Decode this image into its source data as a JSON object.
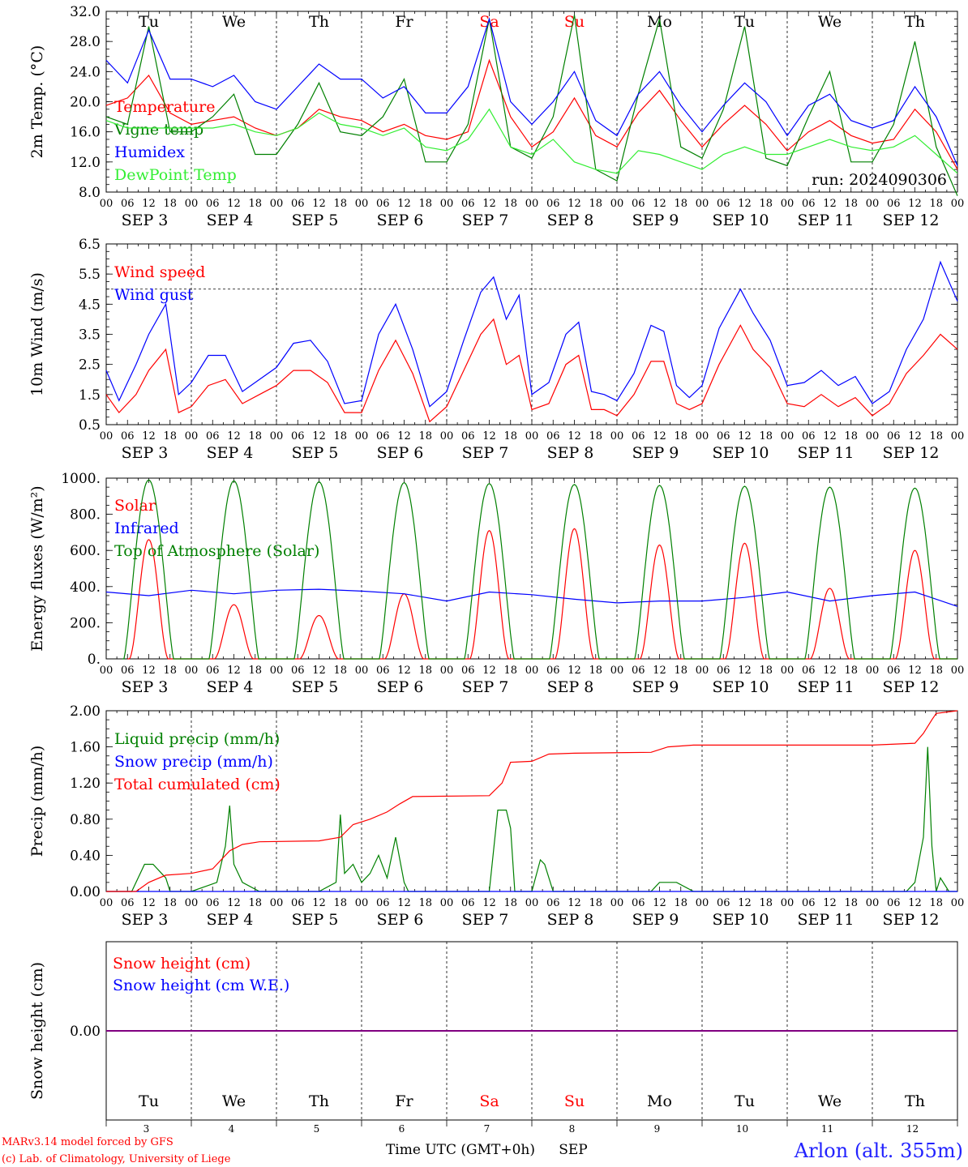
{
  "run_label": "run: 2024090306",
  "footer": {
    "model_line": "MARv3.14 model forced by GFS",
    "lab_line": "(c) Lab. of Climatology, University of Liege",
    "station": "Arlon (alt. 355m)",
    "xaxis_title": "Time UTC (GMT+0h)",
    "month": "SEP"
  },
  "colors": {
    "red": "#ff0000",
    "green": "#008000",
    "blue": "#0000ff",
    "light_green": "#33ee33",
    "purple": "#800080",
    "weekend": "#ff0000"
  },
  "days": [
    {
      "dow": "Tu",
      "date": "SEP  3",
      "num": "3",
      "weekend": false
    },
    {
      "dow": "We",
      "date": "SEP  4",
      "num": "4",
      "weekend": false
    },
    {
      "dow": "Th",
      "date": "SEP  5",
      "num": "5",
      "weekend": false
    },
    {
      "dow": "Fr",
      "date": "SEP  6",
      "num": "6",
      "weekend": false
    },
    {
      "dow": "Sa",
      "date": "SEP  7",
      "num": "7",
      "weekend": true
    },
    {
      "dow": "Su",
      "date": "SEP  8",
      "num": "8",
      "weekend": true
    },
    {
      "dow": "Mo",
      "date": "SEP  9",
      "num": "9",
      "weekend": false
    },
    {
      "dow": "Tu",
      "date": "SEP 10",
      "num": "10",
      "weekend": false
    },
    {
      "dow": "We",
      "date": "SEP 11",
      "num": "11",
      "weekend": false
    },
    {
      "dow": "Th",
      "date": "SEP 12",
      "num": "12",
      "weekend": false
    }
  ],
  "hour_labels": [
    "00",
    "06",
    "12",
    "18"
  ],
  "chart_data": [
    {
      "type": "line",
      "id": "temp",
      "ylabel": "2m Temp. (°C)",
      "ylim": [
        8.0,
        32.0
      ],
      "yticks": [
        "8.0",
        "12.0",
        "16.0",
        "20.0",
        "24.0",
        "28.0",
        "32.0"
      ],
      "ytick_values": [
        8,
        12,
        16,
        20,
        24,
        28,
        32
      ],
      "x_unit": "days since SEP 3 00 UTC",
      "show_run": true,
      "series": [
        {
          "name": "Temperature",
          "color": "#ff0000",
          "x": [
            0,
            0.25,
            0.5,
            0.75,
            1,
            1.25,
            1.5,
            1.75,
            2,
            2.25,
            2.5,
            2.75,
            3,
            3.25,
            3.5,
            3.75,
            4,
            4.25,
            4.5,
            4.75,
            5,
            5.25,
            5.5,
            5.75,
            6,
            6.25,
            6.5,
            6.75,
            7,
            7.25,
            7.5,
            7.75,
            8,
            8.25,
            8.5,
            8.75,
            9,
            9.25,
            9.5,
            9.75,
            10
          ],
          "values": [
            19.5,
            20.5,
            23.5,
            18.5,
            17,
            17.5,
            18,
            16.5,
            15.5,
            16.5,
            19,
            18,
            17.5,
            16,
            17,
            15.5,
            15,
            16,
            25.5,
            18,
            14,
            16,
            20.5,
            15.5,
            14,
            18.5,
            21.5,
            17.5,
            14,
            17,
            19.5,
            17,
            13.5,
            16,
            17.5,
            15.5,
            14.5,
            15,
            19,
            16,
            11
          ]
        },
        {
          "name": "Vigne temp",
          "color": "#008000",
          "x": [
            0,
            0.25,
            0.5,
            0.75,
            1,
            1.25,
            1.5,
            1.75,
            2,
            2.25,
            2.5,
            2.75,
            3,
            3.25,
            3.5,
            3.75,
            4,
            4.25,
            4.5,
            4.75,
            5,
            5.25,
            5.5,
            5.75,
            6,
            6.25,
            6.5,
            6.75,
            7,
            7.25,
            7.5,
            7.75,
            8,
            8.25,
            8.5,
            8.75,
            9,
            9.25,
            9.5,
            9.75,
            10
          ],
          "values": [
            18,
            17,
            30,
            16,
            16,
            18,
            21,
            13,
            13,
            17,
            22.5,
            16,
            15.5,
            18,
            23,
            12,
            12,
            17,
            31,
            14,
            12.5,
            18,
            31.5,
            11,
            9.5,
            21,
            31,
            14,
            12.5,
            19,
            30,
            12.5,
            11.5,
            18,
            24,
            12,
            12,
            17,
            28,
            14,
            7.5
          ]
        },
        {
          "name": "Humidex",
          "color": "#0000ff",
          "x": [
            0,
            0.25,
            0.5,
            0.75,
            1,
            1.25,
            1.5,
            1.75,
            2,
            2.25,
            2.5,
            2.75,
            3,
            3.25,
            3.5,
            3.75,
            4,
            4.25,
            4.5,
            4.75,
            5,
            5.25,
            5.5,
            5.75,
            6,
            6.25,
            6.5,
            6.75,
            7,
            7.25,
            7.5,
            7.75,
            8,
            8.25,
            8.5,
            8.75,
            9,
            9.25,
            9.5,
            9.75,
            10
          ],
          "values": [
            25.5,
            22.5,
            29.5,
            23,
            23,
            22,
            23.5,
            20,
            19,
            22,
            25,
            23,
            23,
            20.5,
            22,
            18.5,
            18.5,
            22,
            31,
            20,
            17,
            20,
            24,
            17.5,
            15.5,
            21,
            24,
            19.5,
            16,
            19.5,
            22.5,
            20,
            15.5,
            19.5,
            21,
            17.5,
            16.5,
            17.5,
            22,
            18,
            11.5
          ]
        },
        {
          "name": "DewPoint Temp",
          "color": "#33ee33",
          "x": [
            0,
            0.25,
            0.5,
            0.75,
            1,
            1.25,
            1.5,
            1.75,
            2,
            2.25,
            2.5,
            2.75,
            3,
            3.25,
            3.5,
            3.75,
            4,
            4.25,
            4.5,
            4.75,
            5,
            5.25,
            5.5,
            5.75,
            6,
            6.25,
            6.5,
            6.75,
            7,
            7.25,
            7.5,
            7.75,
            8,
            8.25,
            8.5,
            8.75,
            9,
            9.25,
            9.5,
            9.75,
            10
          ],
          "values": [
            17.5,
            16.5,
            16.5,
            16.5,
            16.5,
            16.5,
            17,
            16,
            15.5,
            16.5,
            18.5,
            17,
            16.5,
            15.5,
            16.5,
            14,
            13.5,
            15,
            19,
            14,
            13,
            15,
            12,
            11,
            10.5,
            13.5,
            13,
            12,
            11,
            13,
            14,
            13,
            13,
            14,
            15,
            14,
            13.5,
            14,
            15.5,
            13,
            10.5
          ]
        }
      ]
    },
    {
      "type": "line",
      "id": "wind",
      "ylabel": "10m Wind (m/s)",
      "ylim": [
        0.5,
        6.5
      ],
      "yticks": [
        "0.5",
        "1.5",
        "2.5",
        "3.5",
        "4.5",
        "5.5",
        "6.5"
      ],
      "ytick_values": [
        0.5,
        1.5,
        2.5,
        3.5,
        4.5,
        5.5,
        6.5
      ],
      "hline": 5.0,
      "x_unit": "days since SEP 3 00 UTC",
      "series": [
        {
          "name": "Wind speed",
          "color": "#ff0000",
          "x": [
            0,
            0.15,
            0.35,
            0.5,
            0.7,
            0.85,
            1,
            1.2,
            1.4,
            1.6,
            1.8,
            2,
            2.2,
            2.4,
            2.6,
            2.8,
            3,
            3.2,
            3.4,
            3.6,
            3.8,
            4,
            4.2,
            4.4,
            4.55,
            4.7,
            4.85,
            5,
            5.2,
            5.4,
            5.55,
            5.7,
            5.85,
            6,
            6.2,
            6.4,
            6.55,
            6.7,
            6.85,
            7,
            7.2,
            7.45,
            7.6,
            7.8,
            8,
            8.2,
            8.4,
            8.6,
            8.8,
            9,
            9.2,
            9.4,
            9.6,
            9.8,
            10
          ],
          "values": [
            1.5,
            0.9,
            1.5,
            2.3,
            3.0,
            0.9,
            1.1,
            1.8,
            2.0,
            1.2,
            1.5,
            1.8,
            2.3,
            2.3,
            1.9,
            0.9,
            0.9,
            2.3,
            3.3,
            2.2,
            0.6,
            1.1,
            2.3,
            3.5,
            4.0,
            2.5,
            2.8,
            1.0,
            1.2,
            2.5,
            2.8,
            1.0,
            1.0,
            0.8,
            1.5,
            2.6,
            2.6,
            1.2,
            1.0,
            1.2,
            2.5,
            3.8,
            3.0,
            2.4,
            1.2,
            1.1,
            1.5,
            1.1,
            1.4,
            0.8,
            1.2,
            2.2,
            2.8,
            3.5,
            3.0
          ]
        },
        {
          "name": "Wind gust",
          "color": "#0000ff",
          "x": [
            0,
            0.15,
            0.35,
            0.5,
            0.7,
            0.85,
            1,
            1.2,
            1.4,
            1.6,
            1.8,
            2,
            2.2,
            2.4,
            2.6,
            2.8,
            3,
            3.2,
            3.4,
            3.6,
            3.8,
            4,
            4.2,
            4.4,
            4.55,
            4.7,
            4.85,
            5,
            5.2,
            5.4,
            5.55,
            5.7,
            5.85,
            6,
            6.2,
            6.4,
            6.55,
            6.7,
            6.85,
            7,
            7.2,
            7.45,
            7.6,
            7.8,
            8,
            8.2,
            8.4,
            8.6,
            8.8,
            9,
            9.2,
            9.4,
            9.6,
            9.8,
            10
          ],
          "values": [
            2.3,
            1.3,
            2.5,
            3.5,
            4.5,
            1.5,
            1.9,
            2.8,
            2.8,
            1.6,
            2.0,
            2.4,
            3.2,
            3.3,
            2.6,
            1.2,
            1.3,
            3.5,
            4.5,
            3.0,
            1.1,
            1.6,
            3.3,
            4.9,
            5.4,
            4.0,
            4.8,
            1.5,
            1.9,
            3.5,
            3.9,
            1.6,
            1.5,
            1.3,
            2.2,
            3.8,
            3.6,
            1.8,
            1.4,
            1.8,
            3.7,
            5.0,
            4.2,
            3.3,
            1.8,
            1.9,
            2.3,
            1.8,
            2.1,
            1.2,
            1.6,
            3.0,
            4.0,
            5.9,
            4.6
          ]
        }
      ]
    },
    {
      "type": "line",
      "id": "energy",
      "ylabel": "Energy fluxes (W/m²)",
      "ylim": [
        0,
        1000
      ],
      "yticks": [
        "0.",
        "200.",
        "400.",
        "600.",
        "800.",
        "1000."
      ],
      "ytick_values": [
        0,
        200,
        400,
        600,
        800,
        1000
      ],
      "x_unit": "days since SEP 3 00 UTC",
      "series": [
        {
          "name": "Solar",
          "color": "#ff0000",
          "day_peaks": [
            660,
            300,
            240,
            360,
            710,
            720,
            630,
            640,
            390,
            600
          ]
        },
        {
          "name": "Infrared",
          "color": "#0000ff",
          "x": [
            0,
            0.5,
            1,
            1.5,
            2,
            2.5,
            3,
            3.5,
            4,
            4.5,
            5,
            5.5,
            6,
            6.5,
            7,
            7.5,
            8,
            8.5,
            9,
            9.5,
            10
          ],
          "values": [
            370,
            350,
            380,
            360,
            380,
            385,
            375,
            360,
            320,
            370,
            355,
            330,
            310,
            320,
            320,
            340,
            370,
            320,
            350,
            370,
            290
          ]
        },
        {
          "name": "Top of Atmosphere (Solar)",
          "color": "#008000",
          "day_peaks": [
            990,
            985,
            980,
            975,
            970,
            965,
            960,
            955,
            950,
            945
          ]
        }
      ]
    },
    {
      "type": "line",
      "id": "precip",
      "ylabel": "Precip (mm/h)",
      "ylim": [
        0,
        2.0
      ],
      "yticks": [
        "0.00",
        "0.40",
        "0.80",
        "1.20",
        "1.60",
        "2.00"
      ],
      "ytick_values": [
        0,
        0.4,
        0.8,
        1.2,
        1.6,
        2.0
      ],
      "x_unit": "days since SEP 3 00 UTC",
      "series": [
        {
          "name": "Liquid precip (mm/h)",
          "color": "#008000",
          "x": [
            0,
            0.3,
            0.45,
            0.55,
            0.65,
            0.7,
            0.75,
            1.0,
            1.3,
            1.4,
            1.45,
            1.5,
            1.6,
            1.8,
            2.5,
            2.7,
            2.75,
            2.8,
            2.9,
            3.0,
            3.1,
            3.2,
            3.3,
            3.4,
            3.5,
            3.55,
            3.6,
            3.7,
            3.8,
            4.5,
            4.6,
            4.7,
            4.75,
            4.8,
            4.9,
            5.0,
            5.1,
            5.15,
            5.25,
            5.4,
            6.4,
            6.5,
            6.7,
            6.9,
            7.0,
            9.4,
            9.5,
            9.6,
            9.65,
            9.7,
            9.75,
            9.8,
            9.9,
            10
          ],
          "values": [
            0,
            0,
            0.3,
            0.3,
            0.2,
            0.15,
            0,
            0,
            0.1,
            0.5,
            0.95,
            0.3,
            0.1,
            0,
            0,
            0.1,
            0.85,
            0.2,
            0.3,
            0.1,
            0.2,
            0.4,
            0.15,
            0.6,
            0.1,
            0,
            0,
            0,
            0,
            0,
            0.9,
            0.9,
            0.7,
            0,
            0,
            0,
            0.35,
            0.3,
            0,
            0,
            0,
            0.1,
            0.1,
            0,
            0,
            0,
            0.1,
            0.6,
            1.6,
            0.5,
            0,
            0.15,
            0,
            0
          ]
        },
        {
          "name": "Snow precip (mm/h)",
          "color": "#0000ff",
          "x": [
            0,
            10
          ],
          "values": [
            0,
            0
          ]
        },
        {
          "name": "Total cumulated (cm)",
          "color": "#ff0000",
          "x": [
            0,
            0.35,
            0.5,
            0.7,
            1.0,
            1.25,
            1.45,
            1.6,
            1.8,
            2.5,
            2.75,
            2.9,
            3.1,
            3.3,
            3.45,
            3.6,
            4.5,
            4.65,
            4.75,
            5.0,
            5.2,
            5.5,
            6.4,
            6.6,
            6.9,
            9.0,
            9.5,
            9.6,
            9.7,
            9.75,
            10
          ],
          "values": [
            0,
            0,
            0.1,
            0.18,
            0.2,
            0.25,
            0.45,
            0.52,
            0.55,
            0.56,
            0.6,
            0.74,
            0.8,
            0.88,
            0.97,
            1.05,
            1.06,
            1.2,
            1.43,
            1.44,
            1.52,
            1.53,
            1.54,
            1.6,
            1.62,
            1.62,
            1.64,
            1.75,
            1.9,
            1.97,
            2.0
          ]
        }
      ]
    },
    {
      "type": "line",
      "id": "snow",
      "ylabel": "Snow height (cm)",
      "ylim": [
        -1,
        1
      ],
      "yticks": [
        "0.00"
      ],
      "ytick_values": [
        0
      ],
      "x_unit": "days since SEP 3 00 UTC",
      "series": [
        {
          "name": "Snow height (cm)",
          "color": "#ff0000",
          "x": [
            0,
            10
          ],
          "values": [
            0,
            0
          ]
        },
        {
          "name": "Snow height (cm W.E.)",
          "color": "#0000ff",
          "x": [
            0,
            10
          ],
          "values": [
            0,
            0
          ]
        }
      ]
    }
  ]
}
